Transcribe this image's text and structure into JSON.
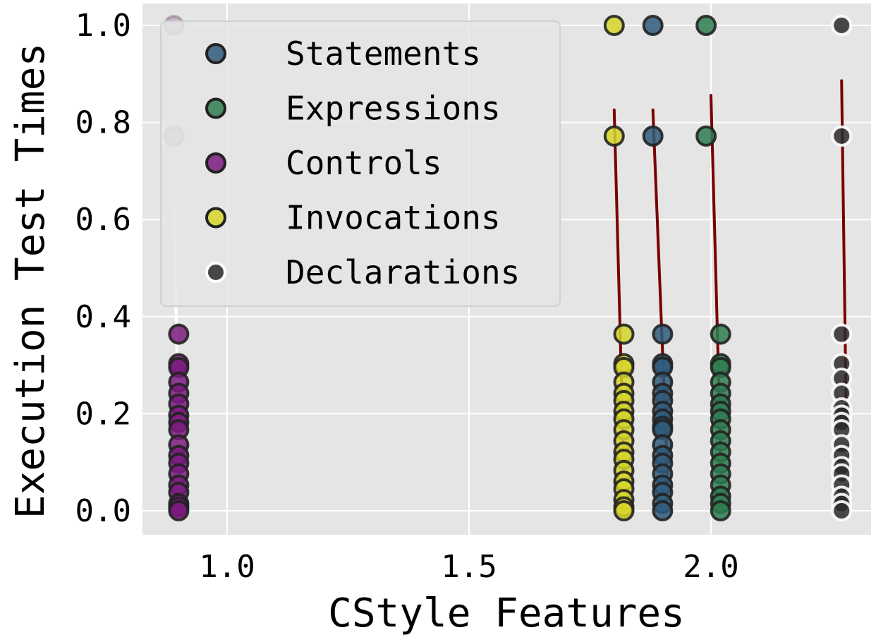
{
  "chart_data": {
    "type": "scatter",
    "title": "",
    "xlabel": "CStyle Features",
    "ylabel": "Execution Test Times",
    "xlim": [
      0.82,
      2.36
    ],
    "ylim": [
      -0.05,
      1.05
    ],
    "xticks": [
      1.0,
      1.5,
      2.0
    ],
    "yticks": [
      0.0,
      0.2,
      0.4,
      0.6,
      0.8,
      1.0
    ],
    "xtick_labels": [
      "1.0",
      "1.5",
      "2.0"
    ],
    "ytick_labels": [
      "0.0",
      "0.2",
      "0.4",
      "0.6",
      "0.8",
      "1.0"
    ],
    "grid": true,
    "legend_position": "top-left",
    "series": [
      {
        "name": "Statements",
        "color": "#2f5a7a",
        "marker_edge": "#222222",
        "x": [
          1.88,
          1.88,
          1.9,
          1.9,
          1.9,
          1.9,
          1.9,
          1.9,
          1.9,
          1.9,
          1.9,
          1.9,
          1.9,
          1.9,
          1.9,
          1.9,
          1.9,
          1.9,
          1.9,
          1.9
        ],
        "y": [
          1.0,
          0.772,
          0.364,
          0.303,
          0.296,
          0.265,
          0.242,
          0.227,
          0.205,
          0.189,
          0.174,
          0.167,
          0.136,
          0.114,
          0.098,
          0.076,
          0.053,
          0.038,
          0.015,
          0.0
        ],
        "fit_line": {
          "color": "#7a0000",
          "x": [
            1.88,
            1.91
          ],
          "y": [
            0.826,
            0.076
          ]
        }
      },
      {
        "name": "Expressions",
        "color": "#2e7d4f",
        "marker_edge": "#222222",
        "x": [
          1.99,
          1.99,
          2.02,
          2.02,
          2.02,
          2.02,
          2.02,
          2.02,
          2.02,
          2.02,
          2.02,
          2.02,
          2.02,
          2.02,
          2.02,
          2.02,
          2.02,
          2.02,
          2.02
        ],
        "y": [
          1.0,
          0.772,
          0.364,
          0.303,
          0.295,
          0.265,
          0.242,
          0.22,
          0.205,
          0.189,
          0.167,
          0.144,
          0.121,
          0.098,
          0.076,
          0.053,
          0.03,
          0.015,
          0.0
        ],
        "fit_line": {
          "color": "#7a0000",
          "x": [
            2.0,
            2.02
          ],
          "y": [
            0.856,
            0.121
          ]
        }
      },
      {
        "name": "Controls",
        "color": "#7b1a80",
        "marker_edge": "#222222",
        "x": [
          0.89,
          0.89,
          0.9,
          0.9,
          0.9,
          0.9,
          0.9,
          0.9,
          0.9,
          0.9,
          0.9,
          0.9,
          0.9,
          0.9,
          0.9,
          0.9,
          0.9,
          0.9,
          0.9,
          0.9
        ],
        "y": [
          1.0,
          0.772,
          0.364,
          0.303,
          0.295,
          0.265,
          0.242,
          0.22,
          0.197,
          0.182,
          0.167,
          0.136,
          0.114,
          0.098,
          0.076,
          0.053,
          0.038,
          0.015,
          0.008,
          0.0
        ],
        "fit_line": {
          "color": "#ffffff",
          "x": [
            0.89,
            0.9
          ],
          "y": [
            0.62,
            0.144
          ]
        }
      },
      {
        "name": "Invocations",
        "color": "#d6d62a",
        "marker_edge": "#222222",
        "x": [
          1.8,
          1.8,
          1.82,
          1.82,
          1.82,
          1.82,
          1.82,
          1.82,
          1.82,
          1.82,
          1.82,
          1.82,
          1.82,
          1.82,
          1.82,
          1.82,
          1.82,
          1.82,
          1.82,
          1.82
        ],
        "y": [
          1.0,
          0.772,
          0.364,
          0.303,
          0.295,
          0.265,
          0.242,
          0.227,
          0.205,
          0.189,
          0.167,
          0.144,
          0.121,
          0.106,
          0.083,
          0.061,
          0.045,
          0.023,
          0.008,
          0.0
        ],
        "fit_line": {
          "color": "#7a0000",
          "x": [
            1.8,
            1.82
          ],
          "y": [
            0.826,
            0.083
          ]
        }
      },
      {
        "name": "Declarations",
        "color": "#2a2a2a",
        "marker_edge": "#ffffff",
        "x": [
          2.27,
          2.27,
          2.27,
          2.27,
          2.27,
          2.27,
          2.27,
          2.27,
          2.27,
          2.27,
          2.27,
          2.27,
          2.27,
          2.27,
          2.27,
          2.27,
          2.27,
          2.27
        ],
        "y": [
          1.0,
          0.772,
          0.364,
          0.303,
          0.273,
          0.242,
          0.212,
          0.197,
          0.182,
          0.167,
          0.136,
          0.114,
          0.091,
          0.076,
          0.053,
          0.03,
          0.015,
          0.0
        ],
        "fit_line": {
          "color": "#7a0000",
          "x": [
            2.27,
            2.28
          ],
          "y": [
            0.886,
            0.167
          ]
        }
      }
    ]
  }
}
